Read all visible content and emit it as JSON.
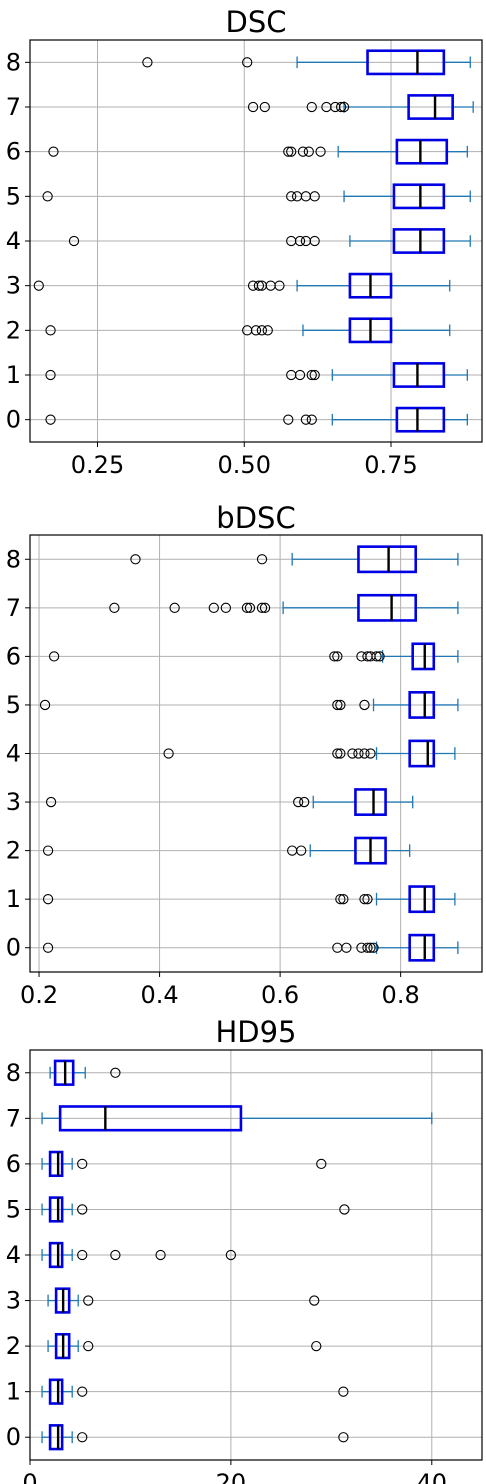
{
  "chart_data": [
    {
      "type": "box",
      "orientation": "horizontal",
      "title": "DSC",
      "xlim": [
        0.135,
        0.905
      ],
      "xticks": [
        0.25,
        0.5,
        0.75
      ],
      "xtick_labels": [
        "0.25",
        "0.50",
        "0.75"
      ],
      "grid": true,
      "categories": [
        "0",
        "1",
        "2",
        "3",
        "4",
        "5",
        "6",
        "7",
        "8"
      ],
      "boxes": [
        {
          "label": "0",
          "whislo": 0.65,
          "q1": 0.76,
          "med": 0.795,
          "q3": 0.84,
          "whishi": 0.88,
          "fliers": [
            0.17,
            0.575,
            0.605,
            0.615
          ]
        },
        {
          "label": "1",
          "whislo": 0.65,
          "q1": 0.755,
          "med": 0.795,
          "q3": 0.84,
          "whishi": 0.88,
          "fliers": [
            0.17,
            0.58,
            0.595,
            0.615,
            0.62
          ]
        },
        {
          "label": "2",
          "whislo": 0.6,
          "q1": 0.68,
          "med": 0.715,
          "q3": 0.75,
          "whishi": 0.85,
          "fliers": [
            0.17,
            0.505,
            0.52,
            0.53,
            0.54
          ]
        },
        {
          "label": "3",
          "whislo": 0.59,
          "q1": 0.68,
          "med": 0.715,
          "q3": 0.75,
          "whishi": 0.85,
          "fliers": [
            0.15,
            0.515,
            0.525,
            0.53,
            0.545,
            0.56
          ]
        },
        {
          "label": "4",
          "whislo": 0.68,
          "q1": 0.755,
          "med": 0.8,
          "q3": 0.84,
          "whishi": 0.885,
          "fliers": [
            0.21,
            0.58,
            0.595,
            0.605,
            0.62
          ]
        },
        {
          "label": "5",
          "whislo": 0.67,
          "q1": 0.755,
          "med": 0.8,
          "q3": 0.84,
          "whishi": 0.885,
          "fliers": [
            0.165,
            0.58,
            0.59,
            0.605,
            0.62
          ]
        },
        {
          "label": "6",
          "whislo": 0.66,
          "q1": 0.76,
          "med": 0.8,
          "q3": 0.845,
          "whishi": 0.88,
          "fliers": [
            0.175,
            0.575,
            0.58,
            0.6,
            0.61,
            0.63
          ]
        },
        {
          "label": "7",
          "whislo": 0.67,
          "q1": 0.78,
          "med": 0.825,
          "q3": 0.855,
          "whishi": 0.89,
          "fliers": [
            0.515,
            0.535,
            0.615,
            0.64,
            0.655,
            0.665,
            0.67
          ]
        },
        {
          "label": "8",
          "whislo": 0.59,
          "q1": 0.71,
          "med": 0.795,
          "q3": 0.84,
          "whishi": 0.885,
          "fliers": [
            0.335,
            0.505
          ]
        }
      ]
    },
    {
      "type": "box",
      "orientation": "horizontal",
      "title": "bDSC",
      "xlim": [
        0.185,
        0.935
      ],
      "xticks": [
        0.2,
        0.4,
        0.6,
        0.8
      ],
      "xtick_labels": [
        "0.2",
        "0.4",
        "0.6",
        "0.8"
      ],
      "grid": true,
      "categories": [
        "0",
        "1",
        "2",
        "3",
        "4",
        "5",
        "6",
        "7",
        "8"
      ],
      "boxes": [
        {
          "label": "0",
          "whislo": 0.76,
          "q1": 0.815,
          "med": 0.84,
          "q3": 0.855,
          "whishi": 0.895,
          "fliers": [
            0.215,
            0.695,
            0.71,
            0.735,
            0.745,
            0.75,
            0.755
          ]
        },
        {
          "label": "1",
          "whislo": 0.76,
          "q1": 0.815,
          "med": 0.84,
          "q3": 0.855,
          "whishi": 0.89,
          "fliers": [
            0.215,
            0.7,
            0.705,
            0.74,
            0.745
          ]
        },
        {
          "label": "2",
          "whislo": 0.65,
          "q1": 0.725,
          "med": 0.75,
          "q3": 0.775,
          "whishi": 0.815,
          "fliers": [
            0.215,
            0.62,
            0.635
          ]
        },
        {
          "label": "3",
          "whislo": 0.655,
          "q1": 0.725,
          "med": 0.755,
          "q3": 0.775,
          "whishi": 0.82,
          "fliers": [
            0.22,
            0.63,
            0.64
          ]
        },
        {
          "label": "4",
          "whislo": 0.76,
          "q1": 0.815,
          "med": 0.845,
          "q3": 0.855,
          "whishi": 0.89,
          "fliers": [
            0.415,
            0.695,
            0.7,
            0.72,
            0.73,
            0.74,
            0.75
          ]
        },
        {
          "label": "5",
          "whislo": 0.755,
          "q1": 0.815,
          "med": 0.84,
          "q3": 0.855,
          "whishi": 0.895,
          "fliers": [
            0.21,
            0.695,
            0.7,
            0.74
          ]
        },
        {
          "label": "6",
          "whislo": 0.77,
          "q1": 0.82,
          "med": 0.84,
          "q3": 0.855,
          "whishi": 0.895,
          "fliers": [
            0.225,
            0.69,
            0.695,
            0.735,
            0.745,
            0.75,
            0.76,
            0.765
          ]
        },
        {
          "label": "7",
          "whislo": 0.605,
          "q1": 0.73,
          "med": 0.785,
          "q3": 0.825,
          "whishi": 0.895,
          "fliers": [
            0.325,
            0.425,
            0.49,
            0.51,
            0.545,
            0.55,
            0.57,
            0.575
          ]
        },
        {
          "label": "8",
          "whislo": 0.62,
          "q1": 0.73,
          "med": 0.78,
          "q3": 0.825,
          "whishi": 0.895,
          "fliers": [
            0.36,
            0.57
          ]
        }
      ]
    },
    {
      "type": "box",
      "orientation": "horizontal",
      "title": "HD95",
      "xlim": [
        0,
        45
      ],
      "xticks": [
        0,
        20,
        40
      ],
      "xtick_labels": [
        "0",
        "20",
        "40"
      ],
      "grid": true,
      "categories": [
        "0",
        "1",
        "2",
        "3",
        "4",
        "5",
        "6",
        "7",
        "8"
      ],
      "boxes": [
        {
          "label": "0",
          "whislo": 1.2,
          "q1": 2.0,
          "med": 2.8,
          "q3": 3.2,
          "whishi": 4.2,
          "fliers": [
            5.2,
            31.2
          ]
        },
        {
          "label": "1",
          "whislo": 1.2,
          "q1": 2.0,
          "med": 2.8,
          "q3": 3.2,
          "whishi": 4.2,
          "fliers": [
            5.2,
            31.2
          ]
        },
        {
          "label": "2",
          "whislo": 1.8,
          "q1": 2.6,
          "med": 3.3,
          "q3": 3.9,
          "whishi": 4.8,
          "fliers": [
            5.8,
            28.5
          ]
        },
        {
          "label": "3",
          "whislo": 1.8,
          "q1": 2.6,
          "med": 3.3,
          "q3": 3.9,
          "whishi": 4.8,
          "fliers": [
            5.8,
            28.3
          ]
        },
        {
          "label": "4",
          "whislo": 1.2,
          "q1": 2.0,
          "med": 2.8,
          "q3": 3.2,
          "whishi": 4.2,
          "fliers": [
            5.2,
            8.5,
            13.0,
            20.0
          ]
        },
        {
          "label": "5",
          "whislo": 1.2,
          "q1": 2.0,
          "med": 2.8,
          "q3": 3.2,
          "whishi": 4.2,
          "fliers": [
            5.2,
            31.3
          ]
        },
        {
          "label": "6",
          "whislo": 1.2,
          "q1": 2.0,
          "med": 2.8,
          "q3": 3.2,
          "whishi": 4.2,
          "fliers": [
            5.2,
            29.0
          ]
        },
        {
          "label": "7",
          "whislo": 1.2,
          "q1": 3.0,
          "med": 7.5,
          "q3": 21.0,
          "whishi": 40.0,
          "fliers": []
        },
        {
          "label": "8",
          "whislo": 2.0,
          "q1": 2.5,
          "med": 3.5,
          "q3": 4.3,
          "whishi": 5.5,
          "fliers": [
            8.5
          ]
        }
      ]
    }
  ]
}
